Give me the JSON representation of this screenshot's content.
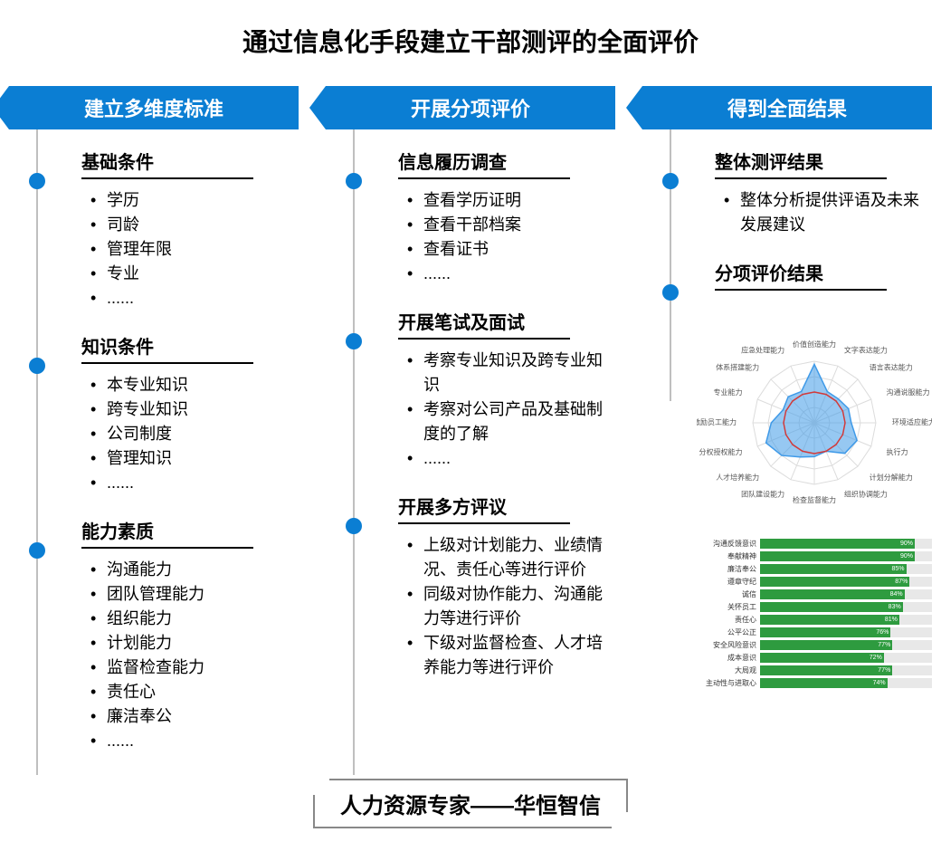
{
  "title": "通过信息化手段建立干部测评的全面评价",
  "columns": [
    {
      "banner": "建立多维度标准",
      "sections": [
        {
          "title": "基础条件",
          "items": [
            "学历",
            "司龄",
            "管理年限",
            "专业",
            "......"
          ]
        },
        {
          "title": "知识条件",
          "items": [
            "本专业知识",
            "跨专业知识",
            "公司制度",
            "管理知识",
            "......"
          ]
        },
        {
          "title": "能力素质",
          "items": [
            "沟通能力",
            "团队管理能力",
            "组织能力",
            "计划能力",
            "监督检查能力",
            "责任心",
            "廉洁奉公",
            "......"
          ]
        }
      ]
    },
    {
      "banner": "开展分项评价",
      "sections": [
        {
          "title": "信息履历调查",
          "items": [
            "查看学历证明",
            "查看干部档案",
            "查看证书",
            "......"
          ]
        },
        {
          "title": "开展笔试及面试",
          "items": [
            "考察专业知识及跨专业知识",
            "考察对公司产品及基础制度的了解",
            "......"
          ]
        },
        {
          "title": "开展多方评议",
          "items": [
            "上级对计划能力、业绩情况、责任心等进行评价",
            "同级对协作能力、沟通能力等进行评价",
            "下级对监督检查、人才培养能力等进行评价"
          ]
        }
      ]
    },
    {
      "banner": "得到全面结果",
      "sections": [
        {
          "title": "整体测评结果",
          "items": [
            "整体分析提供评语及未来发展建议"
          ]
        },
        {
          "title": "分项评价结果",
          "items": []
        }
      ]
    }
  ],
  "radar": {
    "labels": [
      "价值创造能力",
      "文字表达能力",
      "语言表达能力",
      "沟通说服能力",
      "环境适应能力",
      "执行力",
      "计划分解能力",
      "组织协调能力",
      "检查监督能力",
      "团队建设能力",
      "人才培养能力",
      "分权授权能力",
      "激励员工能力",
      "专业能力",
      "体系搭建能力",
      "应急处理能力"
    ],
    "series": [
      {
        "color": "#3f9ae8",
        "fill": "rgba(63,154,232,0.55)",
        "values": [
          95,
          55,
          55,
          60,
          60,
          75,
          70,
          50,
          55,
          60,
          75,
          85,
          70,
          55,
          60,
          55
        ]
      },
      {
        "color": "#d23a3a",
        "fill": "none",
        "values": [
          50,
          50,
          50,
          50,
          50,
          50,
          50,
          50,
          50,
          50,
          50,
          50,
          50,
          50,
          50,
          50
        ]
      }
    ],
    "grid_color": "#dcdcdc",
    "label_fontsize": 8
  },
  "bars": {
    "color": "#2e9b3f",
    "track_color": "#e8e8e8",
    "items": [
      {
        "label": "沟通反馈意识",
        "value": 90
      },
      {
        "label": "奉献精神",
        "value": 90
      },
      {
        "label": "廉洁奉公",
        "value": 85
      },
      {
        "label": "遵章守纪",
        "value": 87
      },
      {
        "label": "诚信",
        "value": 84
      },
      {
        "label": "关怀员工",
        "value": 83
      },
      {
        "label": "责任心",
        "value": 81
      },
      {
        "label": "公平公正",
        "value": 76
      },
      {
        "label": "安全风险意识",
        "value": 77
      },
      {
        "label": "成本意识",
        "value": 72
      },
      {
        "label": "大局观",
        "value": 77
      },
      {
        "label": "主动性与进取心",
        "value": 74
      }
    ]
  },
  "footer": "人力资源专家——华恒智信",
  "colors": {
    "banner": "#0b7ed3",
    "dot": "#0b7ed3",
    "line": "#bfbfbf"
  }
}
